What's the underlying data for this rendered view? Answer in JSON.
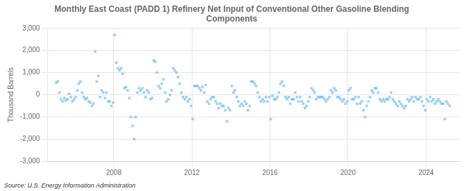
{
  "chart_data": {
    "type": "scatter",
    "title": "Monthly East Coast (PADD 1) Refinery Net Input of Conventional Other Gasoline Blending\nComponents",
    "ylabel": "Thousand Barrels",
    "annotations": [
      "Source: U.S. Energy Information Administration"
    ],
    "marker": "square",
    "grid": true,
    "xlim": [
      2004.6,
      2025.7
    ],
    "xticks": [
      2008,
      2012,
      2016,
      2020,
      2024
    ],
    "ylim": [
      -3000,
      3000
    ],
    "yticks": [
      {
        "value": -3000,
        "label": "-3,000"
      },
      {
        "value": -2000,
        "label": "-2,000"
      },
      {
        "value": -1000,
        "label": "-1,000"
      },
      0,
      {
        "value": 1000,
        "label": "1,000"
      },
      {
        "value": 2000,
        "label": "2,000"
      },
      {
        "value": 3000,
        "label": "3,000"
      }
    ],
    "x": [
      2005.0416667,
      2005.125,
      2005.2083333,
      2005.2916667,
      2005.375,
      2005.4583333,
      2005.5416667,
      2005.625,
      2005.7083333,
      2005.7916667,
      2005.875,
      2005.9583333,
      2006.0416667,
      2006.125,
      2006.2083333,
      2006.2916667,
      2006.375,
      2006.4583333,
      2006.5416667,
      2006.625,
      2006.7083333,
      2006.7916667,
      2006.875,
      2006.9583333,
      2007.0416667,
      2007.125,
      2007.2083333,
      2007.2916667,
      2007.375,
      2007.4583333,
      2007.5416667,
      2007.625,
      2007.7083333,
      2007.7916667,
      2007.875,
      2007.9583333,
      2008.0416667,
      2008.125,
      2008.2083333,
      2008.2916667,
      2008.375,
      2008.4583333,
      2008.5416667,
      2008.625,
      2008.7083333,
      2008.7916667,
      2008.875,
      2008.9583333,
      2009.0416667,
      2009.125,
      2009.2083333,
      2009.2916667,
      2009.375,
      2009.4583333,
      2009.5416667,
      2009.625,
      2009.7083333,
      2009.7916667,
      2009.875,
      2009.9583333,
      2010.0416667,
      2010.125,
      2010.2083333,
      2010.2916667,
      2010.375,
      2010.4583333,
      2010.5416667,
      2010.625,
      2010.7083333,
      2010.7916667,
      2010.875,
      2010.9583333,
      2011.0416667,
      2011.125,
      2011.2083333,
      2011.2916667,
      2011.375,
      2011.4583333,
      2011.5416667,
      2011.625,
      2011.7083333,
      2011.7916667,
      2011.875,
      2011.9583333,
      2012.0416667,
      2012.125,
      2012.2083333,
      2012.2916667,
      2012.375,
      2012.4583333,
      2012.5416667,
      2012.625,
      2012.7083333,
      2012.7916667,
      2012.875,
      2012.9583333,
      2013.0416667,
      2013.125,
      2013.2083333,
      2013.2916667,
      2013.375,
      2013.4583333,
      2013.5416667,
      2013.625,
      2013.7083333,
      2013.7916667,
      2013.875,
      2013.9583333,
      2014.0416667,
      2014.125,
      2014.2083333,
      2014.2916667,
      2014.375,
      2014.4583333,
      2014.5416667,
      2014.625,
      2014.7083333,
      2014.7916667,
      2014.875,
      2014.9583333,
      2015.0416667,
      2015.125,
      2015.2083333,
      2015.2916667,
      2015.375,
      2015.4583333,
      2015.5416667,
      2015.625,
      2015.7083333,
      2015.7916667,
      2015.875,
      2015.9583333,
      2016.0416667,
      2016.125,
      2016.2083333,
      2016.2916667,
      2016.375,
      2016.4583333,
      2016.5416667,
      2016.625,
      2016.7083333,
      2016.7916667,
      2016.875,
      2016.9583333,
      2017.0416667,
      2017.125,
      2017.2083333,
      2017.2916667,
      2017.375,
      2017.4583333,
      2017.5416667,
      2017.625,
      2017.7083333,
      2017.7916667,
      2017.875,
      2017.9583333,
      2018.0416667,
      2018.125,
      2018.2083333,
      2018.2916667,
      2018.375,
      2018.4583333,
      2018.5416667,
      2018.625,
      2018.7083333,
      2018.7916667,
      2018.875,
      2018.9583333,
      2019.0416667,
      2019.125,
      2019.2083333,
      2019.2916667,
      2019.375,
      2019.4583333,
      2019.5416667,
      2019.625,
      2019.7083333,
      2019.7916667,
      2019.875,
      2019.9583333,
      2020.0416667,
      2020.125,
      2020.2083333,
      2020.2916667,
      2020.375,
      2020.4583333,
      2020.5416667,
      2020.625,
      2020.7083333,
      2020.7916667,
      2020.875,
      2020.9583333,
      2021.0416667,
      2021.125,
      2021.2083333,
      2021.2916667,
      2021.375,
      2021.4583333,
      2021.5416667,
      2021.625,
      2021.7083333,
      2021.7916667,
      2021.875,
      2021.9583333,
      2022.0416667,
      2022.125,
      2022.2083333,
      2022.2916667,
      2022.375,
      2022.4583333,
      2022.5416667,
      2022.625,
      2022.7083333,
      2022.7916667,
      2022.875,
      2022.9583333,
      2023.0416667,
      2023.125,
      2023.2083333,
      2023.2916667,
      2023.375,
      2023.4583333,
      2023.5416667,
      2023.625,
      2023.7083333,
      2023.7916667,
      2023.875,
      2023.9583333,
      2024.0416667,
      2024.125,
      2024.2083333,
      2024.2916667,
      2024.375,
      2024.4583333,
      2024.5416667,
      2024.625,
      2024.7083333,
      2024.7916667,
      2024.875,
      2024.9583333,
      2025.0416667,
      2025.125,
      2025.2083333
    ],
    "values": [
      550,
      600,
      100,
      -200,
      -300,
      -150,
      -250,
      -200,
      50,
      -100,
      -300,
      -200,
      -100,
      200,
      500,
      600,
      100,
      -100,
      -200,
      -150,
      -300,
      -350,
      -500,
      -400,
      1950,
      600,
      850,
      -100,
      200,
      100,
      -150,
      100,
      -300,
      -300,
      -500,
      -350,
      2700,
      1450,
      1200,
      1100,
      1200,
      950,
      300,
      350,
      200,
      -150,
      -1000,
      -1400,
      -2000,
      -1000,
      100,
      300,
      200,
      300,
      100,
      -100,
      200,
      100,
      -200,
      -150,
      1550,
      1500,
      1000,
      400,
      300,
      500,
      700,
      100,
      -300,
      -200,
      0,
      200,
      1200,
      1100,
      1000,
      800,
      500,
      100,
      -100,
      -200,
      -100,
      -300,
      -200,
      -500,
      -1100,
      400,
      400,
      400,
      300,
      200,
      350,
      100,
      450,
      -300,
      -400,
      -200,
      -100,
      -100,
      -300,
      -400,
      -600,
      -400,
      -500,
      -500,
      -700,
      -1200,
      -600,
      -700,
      400,
      100,
      200,
      -100,
      -300,
      -500,
      -400,
      -500,
      -300,
      -400,
      -700,
      -500,
      600,
      600,
      500,
      400,
      100,
      -100,
      -300,
      -200,
      -300,
      -100,
      -300,
      -100,
      -1100,
      -50,
      -200,
      -200,
      -100,
      100,
      500,
      600,
      400,
      -100,
      -200,
      -100,
      -400,
      -200,
      -200,
      100,
      -100,
      -300,
      -100,
      -300,
      -400,
      -600,
      -500,
      -300,
      -100,
      300,
      200,
      100,
      -200,
      -100,
      -100,
      -100,
      -100,
      -200,
      -300,
      -200,
      -100,
      200,
      100,
      300,
      200,
      -100,
      -100,
      -200,
      -300,
      -200,
      -400,
      -300,
      200,
      300,
      -200,
      -200,
      -100,
      -400,
      -100,
      -400,
      -300,
      -700,
      -1000,
      -500,
      -300,
      -100,
      200,
      100,
      300,
      300,
      100,
      -200,
      -300,
      -200,
      -300,
      -200,
      -200,
      -100,
      100,
      -200,
      -300,
      -400,
      -500,
      -300,
      -400,
      -500,
      -600,
      -500,
      -200,
      -300,
      -200,
      -100,
      -300,
      -100,
      -200,
      -200,
      -100,
      -300,
      -500,
      -700,
      -200,
      -300,
      -100,
      -300,
      -200,
      -400,
      -300,
      -200,
      -300,
      -400,
      -400,
      -1100,
      -300,
      -400,
      -500
    ]
  }
}
